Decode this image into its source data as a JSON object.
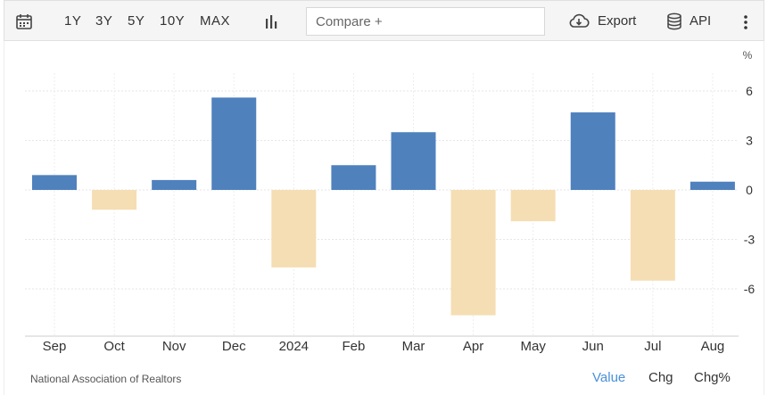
{
  "toolbar": {
    "ranges": [
      "1Y",
      "3Y",
      "5Y",
      "10Y",
      "MAX"
    ],
    "compare_placeholder": "Compare +",
    "export_label": "Export",
    "api_label": "API",
    "icons": [
      "calendar-icon",
      "bar-chart-icon",
      "cloud-download-icon",
      "database-icon",
      "more-vertical-icon"
    ]
  },
  "chart_data": {
    "type": "bar",
    "categories": [
      "Sep",
      "Oct",
      "Nov",
      "Dec",
      "2024",
      "Feb",
      "Mar",
      "Apr",
      "May",
      "Jun",
      "Jul",
      "Aug"
    ],
    "values": [
      0.9,
      -1.2,
      0.6,
      5.6,
      -4.7,
      1.5,
      3.5,
      -7.6,
      -1.9,
      4.7,
      -5.5,
      0.5
    ],
    "ylabel": "%",
    "ylim": [
      -9,
      7
    ],
    "yticks": [
      6,
      3,
      0,
      -3,
      -6
    ],
    "grid": true,
    "colors": {
      "positive": "#4f81bd",
      "negative": "#f5deb3"
    }
  },
  "footer": {
    "source": "National Association of Realtors",
    "modes": [
      "Value",
      "Chg",
      "Chg%"
    ],
    "active_mode": "Value"
  }
}
